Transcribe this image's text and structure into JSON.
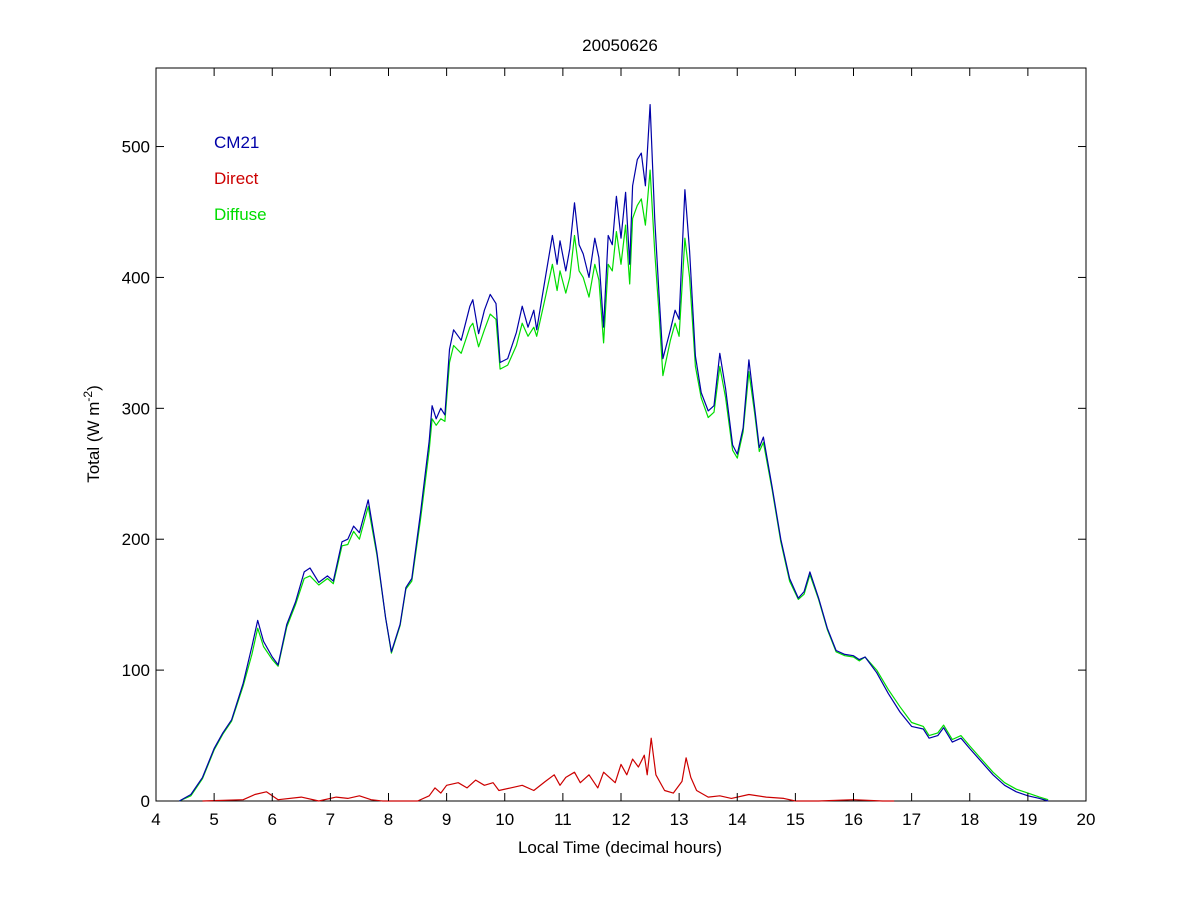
{
  "chart_data": {
    "type": "line",
    "title": "20050626",
    "xlabel": "Local Time (decimal hours)",
    "ylabel_main": "Total (W m",
    "ylabel_sup": "-2",
    "ylabel_close": ")",
    "xlim": [
      4,
      20
    ],
    "ylim": [
      0,
      560
    ],
    "xticks": [
      "4",
      "5",
      "6",
      "7",
      "8",
      "9",
      "10",
      "11",
      "12",
      "13",
      "14",
      "15",
      "16",
      "17",
      "18",
      "19",
      "20"
    ],
    "yticks": [
      "0",
      "100",
      "200",
      "300",
      "400",
      "500"
    ],
    "grid": false,
    "legend_placement": "top-left",
    "series": [
      {
        "name": "CM21",
        "color": "#0000a8",
        "points": [
          [
            4.4,
            0
          ],
          [
            4.6,
            5
          ],
          [
            4.8,
            18
          ],
          [
            5.0,
            40
          ],
          [
            5.15,
            52
          ],
          [
            5.3,
            62
          ],
          [
            5.5,
            90
          ],
          [
            5.65,
            118
          ],
          [
            5.75,
            138
          ],
          [
            5.85,
            122
          ],
          [
            6.0,
            110
          ],
          [
            6.1,
            104
          ],
          [
            6.25,
            135
          ],
          [
            6.4,
            152
          ],
          [
            6.55,
            175
          ],
          [
            6.65,
            178
          ],
          [
            6.8,
            167
          ],
          [
            6.95,
            172
          ],
          [
            7.05,
            168
          ],
          [
            7.2,
            198
          ],
          [
            7.3,
            200
          ],
          [
            7.4,
            210
          ],
          [
            7.5,
            205
          ],
          [
            7.65,
            230
          ],
          [
            7.8,
            190
          ],
          [
            7.95,
            140
          ],
          [
            8.05,
            114
          ],
          [
            8.2,
            135
          ],
          [
            8.3,
            163
          ],
          [
            8.4,
            170
          ],
          [
            8.55,
            220
          ],
          [
            8.7,
            275
          ],
          [
            8.75,
            302
          ],
          [
            8.82,
            292
          ],
          [
            8.9,
            300
          ],
          [
            8.97,
            295
          ],
          [
            9.05,
            345
          ],
          [
            9.12,
            360
          ],
          [
            9.25,
            352
          ],
          [
            9.4,
            378
          ],
          [
            9.45,
            383
          ],
          [
            9.55,
            357
          ],
          [
            9.65,
            375
          ],
          [
            9.75,
            387
          ],
          [
            9.85,
            380
          ],
          [
            9.92,
            335
          ],
          [
            10.05,
            338
          ],
          [
            10.2,
            358
          ],
          [
            10.3,
            378
          ],
          [
            10.4,
            362
          ],
          [
            10.5,
            375
          ],
          [
            10.55,
            360
          ],
          [
            10.7,
            400
          ],
          [
            10.82,
            432
          ],
          [
            10.9,
            410
          ],
          [
            10.95,
            428
          ],
          [
            11.05,
            405
          ],
          [
            11.12,
            422
          ],
          [
            11.2,
            457
          ],
          [
            11.28,
            425
          ],
          [
            11.35,
            418
          ],
          [
            11.45,
            400
          ],
          [
            11.55,
            430
          ],
          [
            11.62,
            415
          ],
          [
            11.7,
            362
          ],
          [
            11.78,
            432
          ],
          [
            11.85,
            425
          ],
          [
            11.92,
            462
          ],
          [
            12.0,
            430
          ],
          [
            12.08,
            465
          ],
          [
            12.15,
            410
          ],
          [
            12.2,
            470
          ],
          [
            12.28,
            490
          ],
          [
            12.35,
            495
          ],
          [
            12.42,
            470
          ],
          [
            12.5,
            532
          ],
          [
            12.58,
            445
          ],
          [
            12.65,
            390
          ],
          [
            12.72,
            338
          ],
          [
            12.85,
            360
          ],
          [
            12.93,
            375
          ],
          [
            13.0,
            368
          ],
          [
            13.1,
            467
          ],
          [
            13.18,
            420
          ],
          [
            13.28,
            340
          ],
          [
            13.38,
            312
          ],
          [
            13.5,
            298
          ],
          [
            13.6,
            302
          ],
          [
            13.7,
            342
          ],
          [
            13.8,
            315
          ],
          [
            13.92,
            272
          ],
          [
            14.0,
            265
          ],
          [
            14.1,
            285
          ],
          [
            14.2,
            337
          ],
          [
            14.3,
            300
          ],
          [
            14.38,
            270
          ],
          [
            14.45,
            278
          ],
          [
            14.6,
            240
          ],
          [
            14.75,
            200
          ],
          [
            14.9,
            170
          ],
          [
            15.05,
            155
          ],
          [
            15.15,
            160
          ],
          [
            15.25,
            175
          ],
          [
            15.4,
            155
          ],
          [
            15.55,
            132
          ],
          [
            15.7,
            115
          ],
          [
            15.85,
            112
          ],
          [
            16.0,
            111
          ],
          [
            16.1,
            108
          ],
          [
            16.2,
            110
          ],
          [
            16.4,
            98
          ],
          [
            16.6,
            82
          ],
          [
            16.8,
            68
          ],
          [
            17.0,
            57
          ],
          [
            17.2,
            55
          ],
          [
            17.3,
            48
          ],
          [
            17.45,
            50
          ],
          [
            17.55,
            56
          ],
          [
            17.7,
            45
          ],
          [
            17.85,
            48
          ],
          [
            18.0,
            40
          ],
          [
            18.2,
            30
          ],
          [
            18.4,
            20
          ],
          [
            18.6,
            12
          ],
          [
            18.8,
            7
          ],
          [
            19.0,
            4
          ],
          [
            19.2,
            2
          ],
          [
            19.35,
            0
          ]
        ]
      },
      {
        "name": "Direct",
        "color": "#cc0000",
        "points": [
          [
            4.8,
            0
          ],
          [
            5.5,
            1
          ],
          [
            5.7,
            5
          ],
          [
            5.9,
            7
          ],
          [
            6.1,
            1
          ],
          [
            6.5,
            3
          ],
          [
            6.8,
            0
          ],
          [
            7.1,
            3
          ],
          [
            7.3,
            2
          ],
          [
            7.5,
            4
          ],
          [
            7.7,
            1
          ],
          [
            7.9,
            0
          ],
          [
            8.5,
            0
          ],
          [
            8.7,
            4
          ],
          [
            8.8,
            10
          ],
          [
            8.9,
            6
          ],
          [
            9.0,
            12
          ],
          [
            9.2,
            14
          ],
          [
            9.35,
            10
          ],
          [
            9.5,
            16
          ],
          [
            9.65,
            12
          ],
          [
            9.8,
            14
          ],
          [
            9.9,
            8
          ],
          [
            10.1,
            10
          ],
          [
            10.3,
            12
          ],
          [
            10.5,
            8
          ],
          [
            10.7,
            15
          ],
          [
            10.85,
            20
          ],
          [
            10.95,
            12
          ],
          [
            11.05,
            18
          ],
          [
            11.2,
            22
          ],
          [
            11.3,
            14
          ],
          [
            11.45,
            20
          ],
          [
            11.6,
            10
          ],
          [
            11.7,
            22
          ],
          [
            11.9,
            14
          ],
          [
            12.0,
            28
          ],
          [
            12.1,
            20
          ],
          [
            12.2,
            32
          ],
          [
            12.3,
            26
          ],
          [
            12.4,
            35
          ],
          [
            12.45,
            20
          ],
          [
            12.52,
            48
          ],
          [
            12.6,
            20
          ],
          [
            12.75,
            8
          ],
          [
            12.9,
            6
          ],
          [
            13.05,
            15
          ],
          [
            13.12,
            33
          ],
          [
            13.2,
            18
          ],
          [
            13.3,
            8
          ],
          [
            13.5,
            3
          ],
          [
            13.7,
            4
          ],
          [
            13.9,
            2
          ],
          [
            14.2,
            5
          ],
          [
            14.5,
            3
          ],
          [
            14.8,
            2
          ],
          [
            15.0,
            0
          ],
          [
            15.4,
            0
          ],
          [
            16.0,
            1
          ],
          [
            16.5,
            0
          ],
          [
            16.7,
            0
          ]
        ]
      },
      {
        "name": "Diffuse",
        "color": "#00dd00",
        "points": [
          [
            4.4,
            0
          ],
          [
            4.6,
            4
          ],
          [
            4.8,
            17
          ],
          [
            5.0,
            39
          ],
          [
            5.15,
            51
          ],
          [
            5.3,
            61
          ],
          [
            5.5,
            88
          ],
          [
            5.65,
            112
          ],
          [
            5.75,
            132
          ],
          [
            5.85,
            118
          ],
          [
            6.0,
            108
          ],
          [
            6.1,
            103
          ],
          [
            6.25,
            133
          ],
          [
            6.4,
            150
          ],
          [
            6.55,
            170
          ],
          [
            6.65,
            172
          ],
          [
            6.8,
            165
          ],
          [
            6.95,
            170
          ],
          [
            7.05,
            166
          ],
          [
            7.2,
            195
          ],
          [
            7.3,
            196
          ],
          [
            7.4,
            206
          ],
          [
            7.5,
            200
          ],
          [
            7.65,
            225
          ],
          [
            7.8,
            188
          ],
          [
            7.95,
            140
          ],
          [
            8.05,
            113
          ],
          [
            8.2,
            134
          ],
          [
            8.3,
            162
          ],
          [
            8.4,
            168
          ],
          [
            8.55,
            215
          ],
          [
            8.7,
            268
          ],
          [
            8.75,
            292
          ],
          [
            8.82,
            287
          ],
          [
            8.9,
            292
          ],
          [
            8.97,
            290
          ],
          [
            9.05,
            335
          ],
          [
            9.12,
            348
          ],
          [
            9.25,
            342
          ],
          [
            9.4,
            362
          ],
          [
            9.45,
            365
          ],
          [
            9.55,
            347
          ],
          [
            9.65,
            360
          ],
          [
            9.75,
            372
          ],
          [
            9.85,
            368
          ],
          [
            9.92,
            330
          ],
          [
            10.05,
            333
          ],
          [
            10.2,
            348
          ],
          [
            10.3,
            365
          ],
          [
            10.4,
            355
          ],
          [
            10.5,
            362
          ],
          [
            10.55,
            355
          ],
          [
            10.7,
            385
          ],
          [
            10.82,
            410
          ],
          [
            10.9,
            390
          ],
          [
            10.95,
            405
          ],
          [
            11.05,
            388
          ],
          [
            11.12,
            400
          ],
          [
            11.2,
            432
          ],
          [
            11.28,
            405
          ],
          [
            11.35,
            400
          ],
          [
            11.45,
            385
          ],
          [
            11.55,
            410
          ],
          [
            11.62,
            398
          ],
          [
            11.7,
            350
          ],
          [
            11.78,
            410
          ],
          [
            11.85,
            405
          ],
          [
            11.92,
            435
          ],
          [
            12.0,
            410
          ],
          [
            12.08,
            440
          ],
          [
            12.15,
            395
          ],
          [
            12.2,
            445
          ],
          [
            12.28,
            455
          ],
          [
            12.35,
            460
          ],
          [
            12.42,
            440
          ],
          [
            12.5,
            482
          ],
          [
            12.58,
            420
          ],
          [
            12.65,
            375
          ],
          [
            12.72,
            325
          ],
          [
            12.85,
            352
          ],
          [
            12.93,
            365
          ],
          [
            13.0,
            355
          ],
          [
            13.1,
            430
          ],
          [
            13.18,
            400
          ],
          [
            13.28,
            332
          ],
          [
            13.38,
            308
          ],
          [
            13.5,
            293
          ],
          [
            13.6,
            297
          ],
          [
            13.7,
            332
          ],
          [
            13.8,
            308
          ],
          [
            13.92,
            268
          ],
          [
            14.0,
            262
          ],
          [
            14.1,
            282
          ],
          [
            14.2,
            328
          ],
          [
            14.3,
            296
          ],
          [
            14.38,
            267
          ],
          [
            14.45,
            274
          ],
          [
            14.6,
            238
          ],
          [
            14.75,
            198
          ],
          [
            14.9,
            168
          ],
          [
            15.05,
            154
          ],
          [
            15.15,
            158
          ],
          [
            15.25,
            173
          ],
          [
            15.4,
            154
          ],
          [
            15.55,
            131
          ],
          [
            15.7,
            114
          ],
          [
            15.85,
            111
          ],
          [
            16.0,
            110
          ],
          [
            16.1,
            107
          ],
          [
            16.2,
            110
          ],
          [
            16.4,
            100
          ],
          [
            16.6,
            85
          ],
          [
            16.8,
            72
          ],
          [
            17.0,
            60
          ],
          [
            17.2,
            57
          ],
          [
            17.3,
            50
          ],
          [
            17.45,
            52
          ],
          [
            17.55,
            58
          ],
          [
            17.7,
            47
          ],
          [
            17.85,
            50
          ],
          [
            18.0,
            42
          ],
          [
            18.2,
            32
          ],
          [
            18.4,
            22
          ],
          [
            18.6,
            14
          ],
          [
            18.8,
            9
          ],
          [
            19.0,
            6
          ],
          [
            19.2,
            3
          ],
          [
            19.35,
            1
          ]
        ]
      }
    ]
  }
}
